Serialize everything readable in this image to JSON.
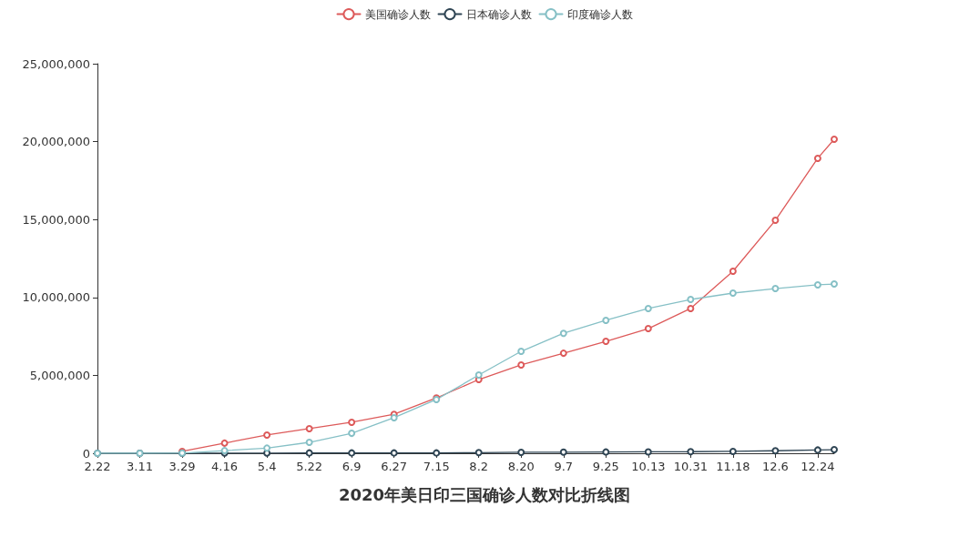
{
  "chart_data": {
    "type": "line",
    "title": "2020年美日印三国确诊人数对比折线图",
    "x": [
      "2020-02-22",
      "2020-03-11",
      "2020-03-29",
      "2020-04-16",
      "2020-05-04",
      "2020-05-22",
      "2020-06-09",
      "2020-06-27",
      "2020-07-15",
      "2020-08-02",
      "2020-08-20",
      "2020-09-07",
      "2020-09-25",
      "2020-10-13",
      "2020-10-31",
      "2020-11-18",
      "2020-12-06",
      "2020-12-24",
      "2020-12-31"
    ],
    "series": [
      {
        "name": "美国确诊人数",
        "color": "#dd5a5a",
        "values": [
          null,
          null,
          120000,
          650000,
          1170000,
          1580000,
          1990000,
          2500000,
          3550000,
          4730000,
          5670000,
          6420000,
          7180000,
          8000000,
          9290000,
          11680000,
          14950000,
          18930000,
          20150000
        ]
      },
      {
        "name": "日本确诊人数",
        "color": "#2f4554",
        "values": [
          0,
          0,
          0,
          10000,
          10000,
          20000,
          20000,
          20000,
          20000,
          40000,
          60000,
          70000,
          80000,
          90000,
          100000,
          120000,
          160000,
          210000,
          230000
        ]
      },
      {
        "name": "印度确诊人数",
        "color": "#86c0c6",
        "values": [
          0,
          0,
          10000,
          170000,
          330000,
          700000,
          1280000,
          2280000,
          3450000,
          5020000,
          6540000,
          7700000,
          8530000,
          9290000,
          9870000,
          10280000,
          10570000,
          10810000,
          10860000
        ]
      }
    ],
    "xlim": [
      "2020-02-22",
      "2020-12-31"
    ],
    "xticks": [
      {
        "value": "2020-02-22",
        "label": "2.22"
      },
      {
        "value": "2020-03-11",
        "label": "3.11"
      },
      {
        "value": "2020-03-29",
        "label": "3.29"
      },
      {
        "value": "2020-04-16",
        "label": "4.16"
      },
      {
        "value": "2020-05-04",
        "label": "5.4"
      },
      {
        "value": "2020-05-22",
        "label": "5.22"
      },
      {
        "value": "2020-06-09",
        "label": "6.9"
      },
      {
        "value": "2020-06-27",
        "label": "6.27"
      },
      {
        "value": "2020-07-15",
        "label": "7.15"
      },
      {
        "value": "2020-08-02",
        "label": "8.2"
      },
      {
        "value": "2020-08-20",
        "label": "8.20"
      },
      {
        "value": "2020-09-07",
        "label": "9.7"
      },
      {
        "value": "2020-09-25",
        "label": "9.25"
      },
      {
        "value": "2020-10-13",
        "label": "10.13"
      },
      {
        "value": "2020-10-31",
        "label": "10.31"
      },
      {
        "value": "2020-11-18",
        "label": "11.18"
      },
      {
        "value": "2020-12-06",
        "label": "12.6"
      },
      {
        "value": "2020-12-24",
        "label": "12.24"
      }
    ],
    "ylim": [
      0,
      25000000
    ],
    "yticks": [
      {
        "value": 0,
        "label": "0"
      },
      {
        "value": 5000000,
        "label": "5,000,000"
      },
      {
        "value": 10000000,
        "label": "10,000,000"
      },
      {
        "value": 15000000,
        "label": "15,000,000"
      },
      {
        "value": 20000000,
        "label": "20,000,000"
      },
      {
        "value": 25000000,
        "label": "25,000,000"
      }
    ],
    "grid": false,
    "legend": "top",
    "marker": "circle",
    "line_style": "solid"
  }
}
